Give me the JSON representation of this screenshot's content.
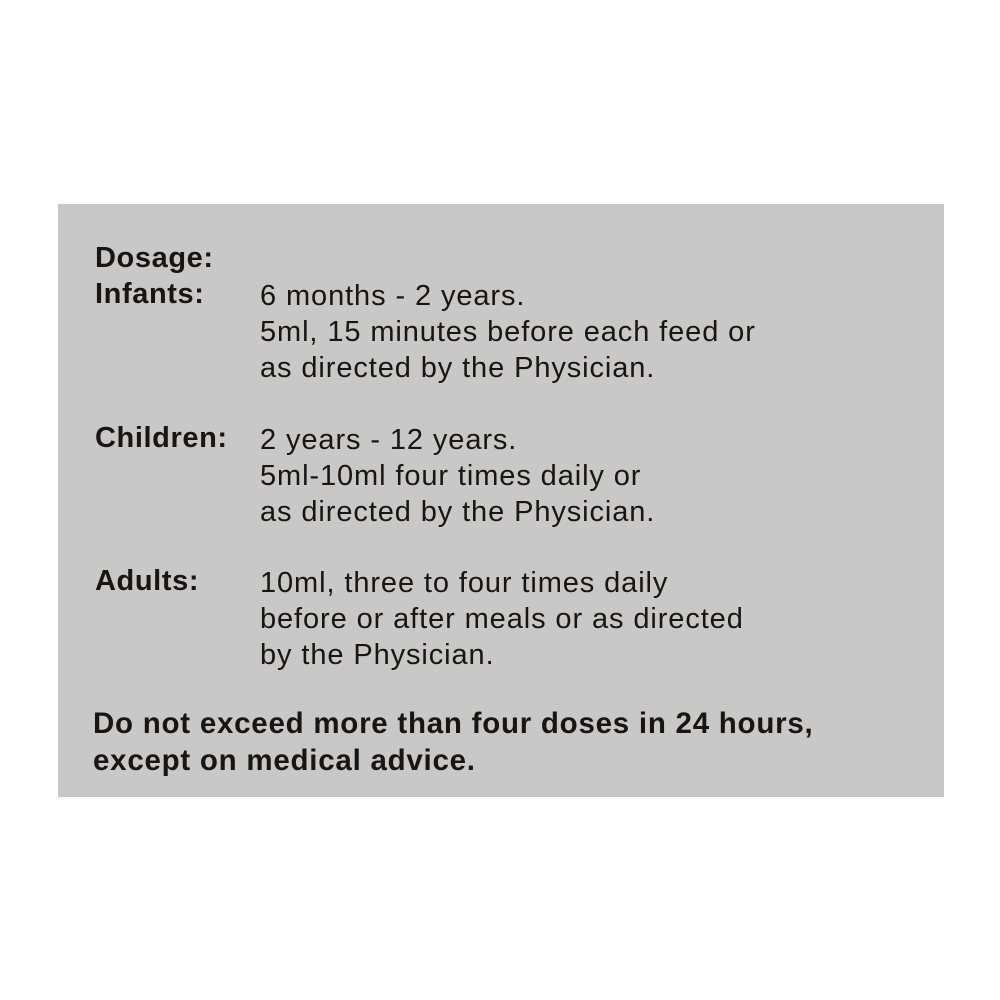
{
  "heading": "Dosage:",
  "groups": [
    {
      "label": "Infants:",
      "lines": [
        "6 months - 2 years.",
        "5ml, 15 minutes before each feed or",
        "as directed by the Physician."
      ]
    },
    {
      "label": "Children:",
      "lines": [
        "2 years - 12 years.",
        "5ml-10ml four times daily or",
        "as directed by the Physician."
      ]
    },
    {
      "label": "Adults:",
      "lines": [
        "10ml, three to four times daily",
        "before or after meals or as directed",
        "by the Physician."
      ]
    }
  ],
  "warning": [
    "Do not exceed more than four doses in 24 hours,",
    "except on medical advice."
  ],
  "colors": {
    "panel": "#c8c8c8",
    "text": "#1a1412",
    "background": "#ffffff"
  }
}
